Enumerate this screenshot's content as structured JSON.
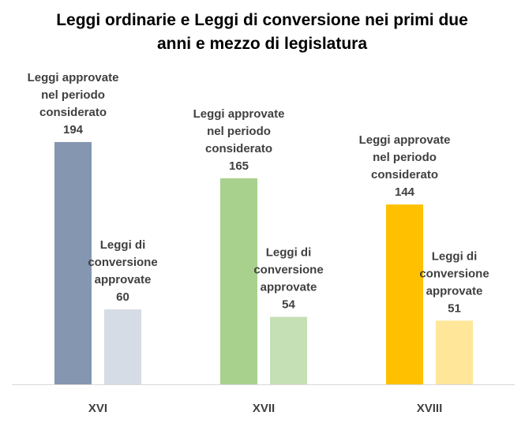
{
  "chart_data": {
    "type": "bar",
    "title": [
      "Leggi ordinarie e Leggi di conversione nei primi due",
      "anni e mezzo di legislatura"
    ],
    "categories": [
      "XVI",
      "XVII",
      "XVIII"
    ],
    "series": [
      {
        "name": "Leggi approvate nel periodo considerato",
        "label_lines": [
          "Leggi approvate",
          "nel periodo",
          "considerato"
        ],
        "values": [
          194,
          165,
          144
        ],
        "colors": [
          "#8496b0",
          "#a9d18e",
          "#ffc000"
        ]
      },
      {
        "name": "Leggi di conversione approvate",
        "label_lines": [
          "Leggi di",
          "conversione",
          "approvate"
        ],
        "values": [
          60,
          54,
          51
        ],
        "colors": [
          "#d6dce5",
          "#c5e0b4",
          "#ffe699"
        ]
      }
    ],
    "ylim": [
      0,
      194
    ],
    "grid": false,
    "legend": "none"
  }
}
